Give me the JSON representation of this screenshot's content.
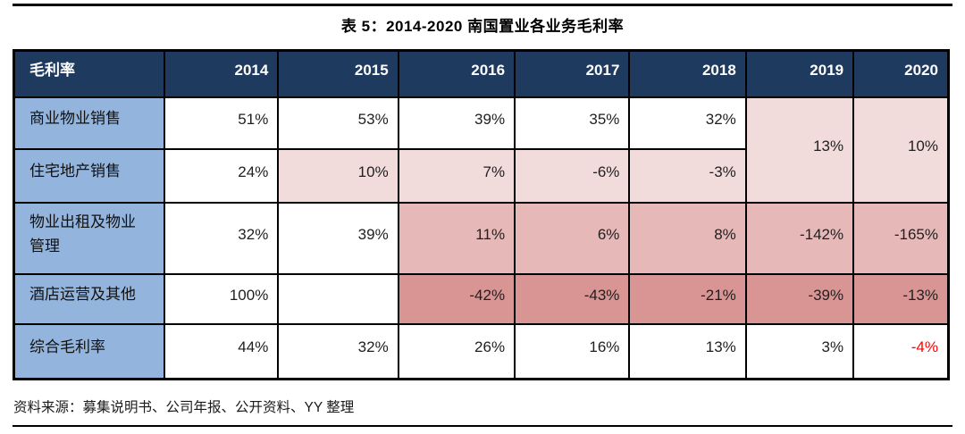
{
  "page": {
    "title": "表 5：2014-2020 南国置业各业务毛利率",
    "source_note": "资料来源：募集说明书、公司年报、公开资料、YY 整理"
  },
  "colors": {
    "header_bg": "#1F3A5F",
    "label_bg": "#93B4DC",
    "pink_light": "#F2DCDB",
    "pink_mid": "#E6B9B8",
    "pink_dark": "#D99594",
    "negative_red": "#FF0000",
    "border": "#000000"
  },
  "table": {
    "header": [
      "毛利率",
      "2014",
      "2015",
      "2016",
      "2017",
      "2018",
      "2019",
      "2020"
    ],
    "rows": [
      {
        "label": "商业物业销售",
        "cells": [
          "51%",
          "53%",
          "39%",
          "35%",
          "32%"
        ]
      },
      {
        "label": "住宅地产销售",
        "cells": [
          "24%",
          "10%",
          "7%",
          "-6%",
          "-3%"
        ]
      },
      {
        "label": "物业出租及物业管理",
        "cells": [
          "32%",
          "39%",
          "11%",
          "6%",
          "8%",
          "-142%",
          "-165%"
        ]
      },
      {
        "label": "酒店运营及其他",
        "cells": [
          "100%",
          "",
          "-42%",
          "-43%",
          "-21%",
          "-39%",
          "-13%"
        ]
      },
      {
        "label": "综合毛利率",
        "cells": [
          "44%",
          "32%",
          "26%",
          "16%",
          "13%",
          "3%",
          "-4%"
        ]
      }
    ],
    "merged": {
      "2019": "13%",
      "2020": "10%"
    }
  }
}
